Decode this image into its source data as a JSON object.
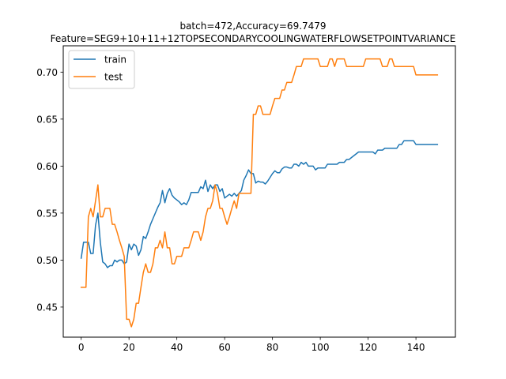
{
  "chart_data": {
    "type": "line",
    "title_lines": [
      "batch=472,Accuracy=69.7479",
      "Feature=SEG9+10+11+12TOPSECONDARYCOOLINGWATERFLOWSETPOINTVARIANCE"
    ],
    "xlabel": "",
    "ylabel": "",
    "xlim": [
      -7.5,
      156.5
    ],
    "ylim": [
      0.418,
      0.728
    ],
    "x_ticks": [
      0,
      20,
      40,
      60,
      80,
      100,
      120,
      140
    ],
    "y_ticks": [
      0.45,
      0.5,
      0.55,
      0.6,
      0.65,
      0.7
    ],
    "y_tick_labels": [
      "0.45",
      "0.50",
      "0.55",
      "0.60",
      "0.65",
      "0.70"
    ],
    "grid": false,
    "legend_position": "top-left",
    "series": [
      {
        "name": "train",
        "color": "#1f77b4",
        "points": [
          [
            0,
            0.502
          ],
          [
            1,
            0.519
          ],
          [
            2,
            0.519
          ],
          [
            3,
            0.519
          ],
          [
            4,
            0.507
          ],
          [
            5,
            0.507
          ],
          [
            6,
            0.537
          ],
          [
            7,
            0.55
          ],
          [
            8,
            0.519
          ],
          [
            9,
            0.498
          ],
          [
            10,
            0.496
          ],
          [
            11,
            0.492
          ],
          [
            12,
            0.494
          ],
          [
            13,
            0.494
          ],
          [
            14,
            0.5
          ],
          [
            15,
            0.498
          ],
          [
            16,
            0.5
          ],
          [
            17,
            0.5
          ],
          [
            18,
            0.496
          ],
          [
            19,
            0.498
          ],
          [
            20,
            0.517
          ],
          [
            21,
            0.511
          ],
          [
            22,
            0.517
          ],
          [
            23,
            0.515
          ],
          [
            24,
            0.505
          ],
          [
            25,
            0.511
          ],
          [
            26,
            0.525
          ],
          [
            27,
            0.523
          ],
          [
            28,
            0.53
          ],
          [
            29,
            0.538
          ],
          [
            30,
            0.544
          ],
          [
            31,
            0.55
          ],
          [
            32,
            0.556
          ],
          [
            33,
            0.561
          ],
          [
            34,
            0.574
          ],
          [
            35,
            0.561
          ],
          [
            36,
            0.571
          ],
          [
            37,
            0.576
          ],
          [
            38,
            0.569
          ],
          [
            39,
            0.566
          ],
          [
            40,
            0.564
          ],
          [
            41,
            0.562
          ],
          [
            42,
            0.559
          ],
          [
            43,
            0.561
          ],
          [
            44,
            0.559
          ],
          [
            45,
            0.564
          ],
          [
            46,
            0.572
          ],
          [
            47,
            0.572
          ],
          [
            48,
            0.572
          ],
          [
            49,
            0.572
          ],
          [
            50,
            0.578
          ],
          [
            51,
            0.576
          ],
          [
            52,
            0.585
          ],
          [
            53,
            0.573
          ],
          [
            54,
            0.58
          ],
          [
            55,
            0.576
          ],
          [
            56,
            0.58
          ],
          [
            57,
            0.58
          ],
          [
            58,
            0.573
          ],
          [
            59,
            0.576
          ],
          [
            60,
            0.566
          ],
          [
            61,
            0.568
          ],
          [
            62,
            0.57
          ],
          [
            63,
            0.568
          ],
          [
            64,
            0.571
          ],
          [
            65,
            0.568
          ],
          [
            66,
            0.571
          ],
          [
            67,
            0.574
          ],
          [
            68,
            0.585
          ],
          [
            69,
            0.59
          ],
          [
            70,
            0.596
          ],
          [
            71,
            0.592
          ],
          [
            72,
            0.592
          ],
          [
            73,
            0.582
          ],
          [
            74,
            0.584
          ],
          [
            75,
            0.583
          ],
          [
            76,
            0.583
          ],
          [
            77,
            0.581
          ],
          [
            78,
            0.584
          ],
          [
            79,
            0.588
          ],
          [
            80,
            0.592
          ],
          [
            81,
            0.595
          ],
          [
            82,
            0.593
          ],
          [
            83,
            0.593
          ],
          [
            84,
            0.597
          ],
          [
            85,
            0.599
          ],
          [
            86,
            0.599
          ],
          [
            87,
            0.598
          ],
          [
            88,
            0.598
          ],
          [
            89,
            0.602
          ],
          [
            90,
            0.602
          ],
          [
            91,
            0.6
          ],
          [
            92,
            0.604
          ],
          [
            93,
            0.602
          ],
          [
            94,
            0.604
          ],
          [
            95,
            0.6
          ],
          [
            96,
            0.6
          ],
          [
            97,
            0.6
          ],
          [
            98,
            0.596
          ],
          [
            99,
            0.598
          ],
          [
            100,
            0.598
          ],
          [
            101,
            0.598
          ],
          [
            102,
            0.598
          ],
          [
            103,
            0.602
          ],
          [
            104,
            0.602
          ],
          [
            105,
            0.602
          ],
          [
            106,
            0.602
          ],
          [
            107,
            0.602
          ],
          [
            108,
            0.604
          ],
          [
            109,
            0.604
          ],
          [
            110,
            0.604
          ],
          [
            111,
            0.607
          ],
          [
            112,
            0.607
          ],
          [
            113,
            0.609
          ],
          [
            114,
            0.611
          ],
          [
            115,
            0.613
          ],
          [
            116,
            0.615
          ],
          [
            117,
            0.615
          ],
          [
            118,
            0.615
          ],
          [
            119,
            0.615
          ],
          [
            120,
            0.615
          ],
          [
            121,
            0.615
          ],
          [
            122,
            0.615
          ],
          [
            123,
            0.613
          ],
          [
            124,
            0.617
          ],
          [
            125,
            0.617
          ],
          [
            126,
            0.617
          ],
          [
            127,
            0.619
          ],
          [
            128,
            0.619
          ],
          [
            129,
            0.619
          ],
          [
            130,
            0.619
          ],
          [
            131,
            0.619
          ],
          [
            132,
            0.619
          ],
          [
            133,
            0.623
          ],
          [
            134,
            0.623
          ],
          [
            135,
            0.627
          ],
          [
            136,
            0.627
          ],
          [
            137,
            0.627
          ],
          [
            138,
            0.627
          ],
          [
            139,
            0.627
          ],
          [
            140,
            0.623
          ],
          [
            141,
            0.623
          ],
          [
            142,
            0.623
          ],
          [
            143,
            0.623
          ],
          [
            144,
            0.623
          ],
          [
            145,
            0.623
          ],
          [
            146,
            0.623
          ],
          [
            147,
            0.623
          ],
          [
            148,
            0.623
          ],
          [
            149,
            0.623
          ]
        ]
      },
      {
        "name": "test",
        "color": "#ff7f0e",
        "points": [
          [
            0,
            0.471
          ],
          [
            1,
            0.471
          ],
          [
            2,
            0.471
          ],
          [
            3,
            0.546
          ],
          [
            4,
            0.555
          ],
          [
            5,
            0.546
          ],
          [
            6,
            0.563
          ],
          [
            7,
            0.58
          ],
          [
            8,
            0.546
          ],
          [
            9,
            0.546
          ],
          [
            10,
            0.555
          ],
          [
            11,
            0.555
          ],
          [
            12,
            0.555
          ],
          [
            13,
            0.538
          ],
          [
            14,
            0.538
          ],
          [
            15,
            0.53
          ],
          [
            16,
            0.521
          ],
          [
            17,
            0.513
          ],
          [
            18,
            0.504
          ],
          [
            19,
            0.437
          ],
          [
            20,
            0.437
          ],
          [
            21,
            0.429
          ],
          [
            22,
            0.437
          ],
          [
            23,
            0.454
          ],
          [
            24,
            0.454
          ],
          [
            25,
            0.471
          ],
          [
            26,
            0.487
          ],
          [
            27,
            0.496
          ],
          [
            28,
            0.487
          ],
          [
            29,
            0.487
          ],
          [
            30,
            0.496
          ],
          [
            31,
            0.513
          ],
          [
            32,
            0.513
          ],
          [
            33,
            0.521
          ],
          [
            34,
            0.513
          ],
          [
            35,
            0.53
          ],
          [
            36,
            0.513
          ],
          [
            37,
            0.513
          ],
          [
            38,
            0.496
          ],
          [
            39,
            0.496
          ],
          [
            40,
            0.504
          ],
          [
            41,
            0.504
          ],
          [
            42,
            0.504
          ],
          [
            43,
            0.513
          ],
          [
            44,
            0.513
          ],
          [
            45,
            0.513
          ],
          [
            46,
            0.521
          ],
          [
            47,
            0.53
          ],
          [
            48,
            0.53
          ],
          [
            49,
            0.53
          ],
          [
            50,
            0.521
          ],
          [
            51,
            0.53
          ],
          [
            52,
            0.546
          ],
          [
            53,
            0.555
          ],
          [
            54,
            0.555
          ],
          [
            55,
            0.563
          ],
          [
            56,
            0.58
          ],
          [
            57,
            0.571
          ],
          [
            58,
            0.555
          ],
          [
            59,
            0.555
          ],
          [
            60,
            0.546
          ],
          [
            61,
            0.538
          ],
          [
            62,
            0.546
          ],
          [
            63,
            0.555
          ],
          [
            64,
            0.563
          ],
          [
            65,
            0.555
          ],
          [
            66,
            0.571
          ],
          [
            67,
            0.571
          ],
          [
            68,
            0.571
          ],
          [
            69,
            0.571
          ],
          [
            70,
            0.571
          ],
          [
            71,
            0.571
          ],
          [
            72,
            0.655
          ],
          [
            73,
            0.655
          ],
          [
            74,
            0.664
          ],
          [
            75,
            0.664
          ],
          [
            76,
            0.655
          ],
          [
            77,
            0.655
          ],
          [
            78,
            0.655
          ],
          [
            79,
            0.655
          ],
          [
            80,
            0.664
          ],
          [
            81,
            0.672
          ],
          [
            82,
            0.672
          ],
          [
            83,
            0.672
          ],
          [
            84,
            0.681
          ],
          [
            85,
            0.681
          ],
          [
            86,
            0.689
          ],
          [
            87,
            0.689
          ],
          [
            88,
            0.689
          ],
          [
            89,
            0.697
          ],
          [
            90,
            0.706
          ],
          [
            91,
            0.706
          ],
          [
            92,
            0.706
          ],
          [
            93,
            0.714
          ],
          [
            94,
            0.714
          ],
          [
            95,
            0.714
          ],
          [
            96,
            0.714
          ],
          [
            97,
            0.714
          ],
          [
            98,
            0.714
          ],
          [
            99,
            0.714
          ],
          [
            100,
            0.706
          ],
          [
            101,
            0.706
          ],
          [
            102,
            0.706
          ],
          [
            103,
            0.706
          ],
          [
            104,
            0.714
          ],
          [
            105,
            0.714
          ],
          [
            106,
            0.706
          ],
          [
            107,
            0.714
          ],
          [
            108,
            0.714
          ],
          [
            109,
            0.714
          ],
          [
            110,
            0.714
          ],
          [
            111,
            0.706
          ],
          [
            112,
            0.706
          ],
          [
            113,
            0.706
          ],
          [
            114,
            0.706
          ],
          [
            115,
            0.706
          ],
          [
            116,
            0.706
          ],
          [
            117,
            0.706
          ],
          [
            118,
            0.706
          ],
          [
            119,
            0.714
          ],
          [
            120,
            0.714
          ],
          [
            121,
            0.714
          ],
          [
            122,
            0.714
          ],
          [
            123,
            0.714
          ],
          [
            124,
            0.714
          ],
          [
            125,
            0.714
          ],
          [
            126,
            0.706
          ],
          [
            127,
            0.706
          ],
          [
            128,
            0.706
          ],
          [
            129,
            0.714
          ],
          [
            130,
            0.714
          ],
          [
            131,
            0.706
          ],
          [
            132,
            0.706
          ],
          [
            133,
            0.706
          ],
          [
            134,
            0.706
          ],
          [
            135,
            0.706
          ],
          [
            136,
            0.706
          ],
          [
            137,
            0.706
          ],
          [
            138,
            0.706
          ],
          [
            139,
            0.706
          ],
          [
            140,
            0.697
          ],
          [
            141,
            0.697
          ],
          [
            142,
            0.697
          ],
          [
            143,
            0.697
          ],
          [
            144,
            0.697
          ],
          [
            145,
            0.697
          ],
          [
            146,
            0.697
          ],
          [
            147,
            0.697
          ],
          [
            148,
            0.697
          ],
          [
            149,
            0.697
          ]
        ]
      }
    ]
  }
}
